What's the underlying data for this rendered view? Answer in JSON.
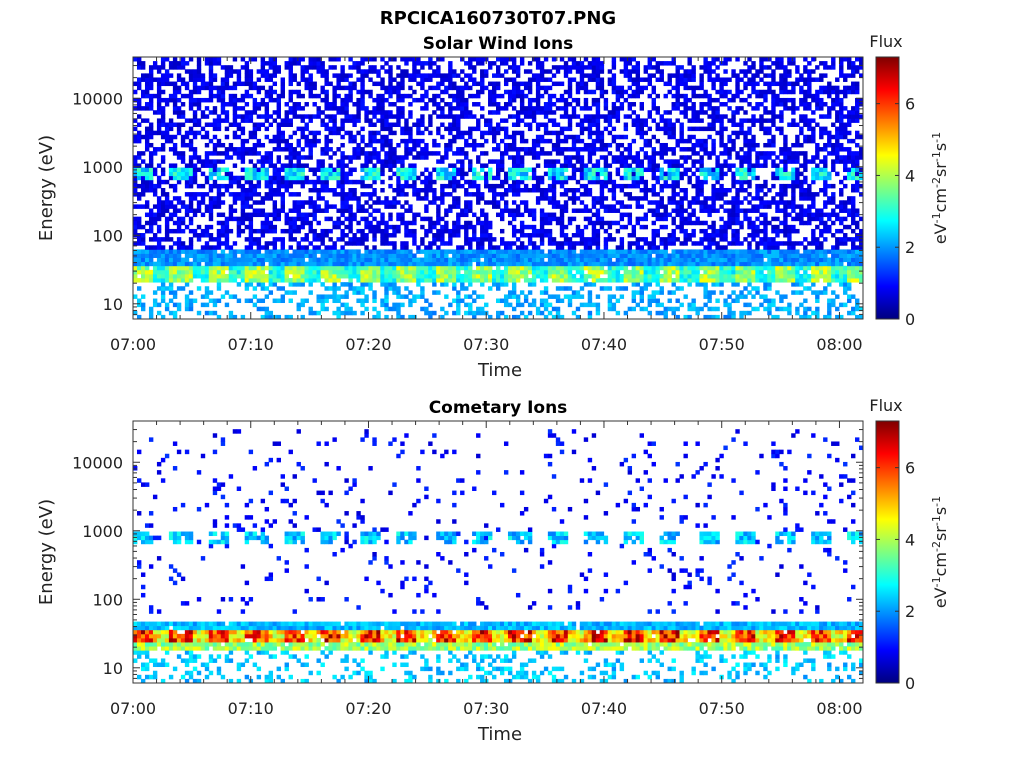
{
  "figure": {
    "title": "RPCICA160730T07.PNG"
  },
  "colormap": {
    "name": "jet",
    "stops": [
      "#00007f",
      "#0000ff",
      "#007fff",
      "#00ffff",
      "#7fff7f",
      "#ffff00",
      "#ff7f00",
      "#ff0000",
      "#7f0000"
    ]
  },
  "chart_data": [
    {
      "type": "heatmap",
      "title": "Solar Wind Ions",
      "xlabel": "Time",
      "ylabel": "Energy (eV)",
      "xlim": [
        "07:00",
        "08:02"
      ],
      "xticks": [
        "07:00",
        "07:10",
        "07:20",
        "07:30",
        "07:40",
        "07:50",
        "08:00"
      ],
      "ylim": [
        6,
        40000
      ],
      "yscale": "log",
      "yticks": [
        "10",
        "100",
        "1000",
        "10000"
      ],
      "colorbar": {
        "label": "Flux",
        "unit": "eV-1cm-2sr-1s-1",
        "range": [
          0,
          7.3
        ],
        "ticks": [
          "0",
          "2",
          "4",
          "6"
        ]
      },
      "features": [
        {
          "name": "background",
          "energy_range": [
            60,
            40000
          ],
          "flux": 0.8,
          "occupancy": 0.55
        },
        {
          "name": "band",
          "energy_center": 800,
          "flux": 2.8,
          "period_min": 3.2,
          "note": "periodic patches"
        },
        {
          "name": "band",
          "energy_range": [
            22,
            38
          ],
          "flux": 4.0,
          "period_min": 3.2
        },
        {
          "name": "band",
          "energy_range": [
            38,
            60
          ],
          "flux": 2.0
        },
        {
          "name": "band",
          "energy_range": [
            6,
            20
          ],
          "flux": 2.2,
          "occupancy": 0.4
        }
      ]
    },
    {
      "type": "heatmap",
      "title": "Cometary Ions",
      "xlabel": "Time",
      "ylabel": "Energy (eV)",
      "xlim": [
        "07:00",
        "08:02"
      ],
      "xticks": [
        "07:00",
        "07:10",
        "07:20",
        "07:30",
        "07:40",
        "07:50",
        "08:00"
      ],
      "ylim": [
        6,
        40000
      ],
      "yscale": "log",
      "yticks": [
        "10",
        "100",
        "1000",
        "10000"
      ],
      "colorbar": {
        "label": "Flux",
        "unit": "eV-1cm-2sr-1s-1",
        "range": [
          0,
          7.3
        ],
        "ticks": [
          "0",
          "2",
          "4",
          "6"
        ]
      },
      "features": [
        {
          "name": "background",
          "energy_range": [
            60,
            30000
          ],
          "flux": 1.0,
          "occupancy": 0.06
        },
        {
          "name": "band",
          "energy_center": 800,
          "flux": 2.5,
          "period_min": 3.2
        },
        {
          "name": "band",
          "energy_range": [
            24,
            38
          ],
          "flux": 6.3,
          "period_min": 3.2
        },
        {
          "name": "band",
          "energy_range": [
            19,
            24
          ],
          "flux": 4.0
        },
        {
          "name": "band",
          "energy_range": [
            38,
            50
          ],
          "flux": 2.3
        },
        {
          "name": "band",
          "energy_range": [
            6,
            18
          ],
          "flux": 2.4,
          "occupancy": 0.25
        }
      ]
    }
  ]
}
